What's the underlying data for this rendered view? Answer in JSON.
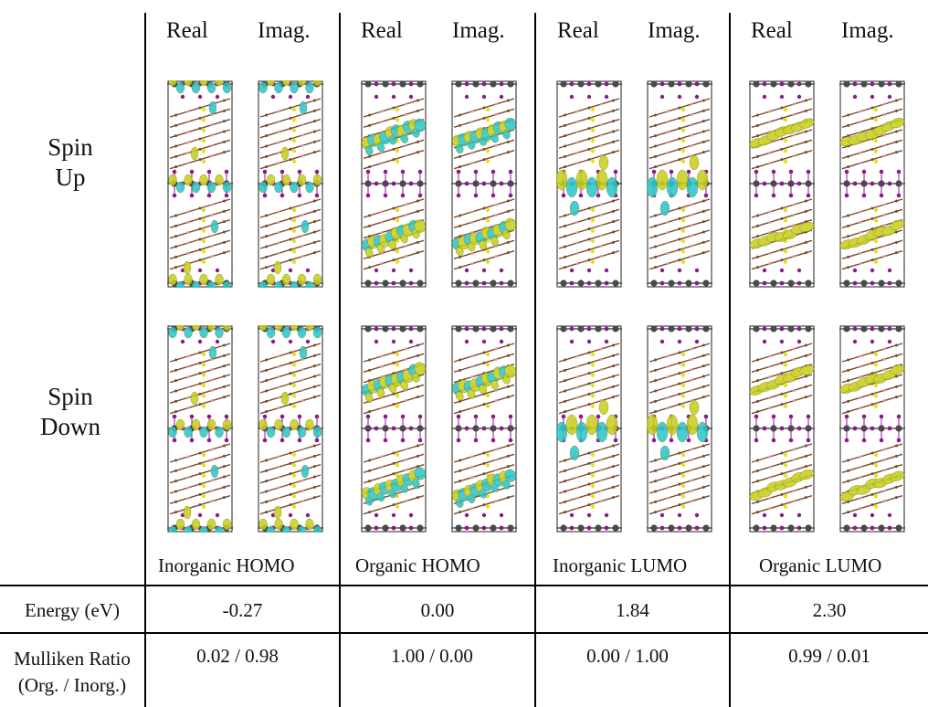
{
  "column_headers": {
    "real": "Real",
    "imag": "Imag."
  },
  "row_labels": {
    "spin_up": [
      "Spin",
      "Up"
    ],
    "spin_down": [
      "Spin",
      "Down"
    ]
  },
  "orbitals": [
    {
      "name": "Inorganic HOMO",
      "energy": "-0.27",
      "mulliken": "0.02 / 0.98"
    },
    {
      "name": "Organic HOMO",
      "energy": "0.00",
      "mulliken": "1.00 / 0.00"
    },
    {
      "name": "Inorganic LUMO",
      "energy": "1.84",
      "mulliken": "0.00 / 1.00"
    },
    {
      "name": "Organic LUMO",
      "energy": "2.30",
      "mulliken": "0.99 / 0.01"
    }
  ],
  "table_rows": {
    "energy_label": "Energy (eV)",
    "mulliken_label_line1": "Mulliken Ratio",
    "mulliken_label_line2": "(Org. / Inorg.)"
  },
  "colors": {
    "isosurface_positive": "#c8cf1e",
    "isosurface_negative": "#2fc6c9",
    "iodine_atom": "#8b1a8b",
    "metal_atom": "#4a4a4a",
    "sulfur_atom": "#e8e020",
    "carbon_bond": "#7a4a2a"
  }
}
